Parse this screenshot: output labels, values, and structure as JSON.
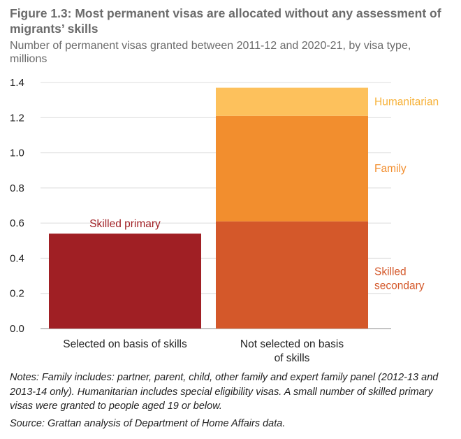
{
  "figure": {
    "title": "Figure 1.3: Most permanent visas are allocated without any assessment of migrants’ skills",
    "subtitle": "Number of permanent visas granted between 2011-12 and 2020-21, by visa type, millions",
    "notes": "Notes: Family includes: partner, parent, child, other family and expert family panel (2012-13 and 2013-14 only). Humanitarian includes special eligibility visas. A small number of skilled primary visas were granted to people aged 19 or below.",
    "source": "Source: Grattan analysis of Department of Home Affairs data."
  },
  "chart_data": {
    "type": "bar",
    "stacked": true,
    "title": "Figure 1.3: Most permanent visas are allocated without any assessment of migrants’ skills",
    "ylabel": "Number of permanent visas granted between 2011-12 and 2020-21, by visa type, millions",
    "xlabel": "",
    "ylim": [
      0,
      1.4
    ],
    "yticks": [
      0.0,
      0.2,
      0.4,
      0.6,
      0.8,
      1.0,
      1.2,
      1.4
    ],
    "ytick_labels": [
      "0.0",
      "0.2",
      "0.4",
      "0.6",
      "0.8",
      "1.0",
      "1.2",
      "1.4"
    ],
    "grid": true,
    "categories": [
      {
        "lines": [
          "Selected on basis of skills"
        ]
      },
      {
        "lines": [
          "Not selected on basis",
          "of skills"
        ]
      }
    ],
    "series": [
      {
        "name": "Skilled primary",
        "label_lines": [
          "Skilled primary"
        ],
        "color": "#a01f24",
        "text_color": "#a01f24",
        "values": [
          0.54,
          0
        ]
      },
      {
        "name": "Skilled secondary",
        "label_lines": [
          "Skilled",
          "secondary"
        ],
        "color": "#d4582a",
        "text_color": "#d4582a",
        "values": [
          0,
          0.61
        ]
      },
      {
        "name": "Family",
        "label_lines": [
          "Family"
        ],
        "color": "#f28e2e",
        "text_color": "#f28e2e",
        "values": [
          0,
          0.6
        ]
      },
      {
        "name": "Humanitarian",
        "label_lines": [
          "Humanitarian"
        ],
        "color": "#fdc15c",
        "text_color": "#f7b23a",
        "values": [
          0,
          0.16
        ]
      }
    ]
  }
}
